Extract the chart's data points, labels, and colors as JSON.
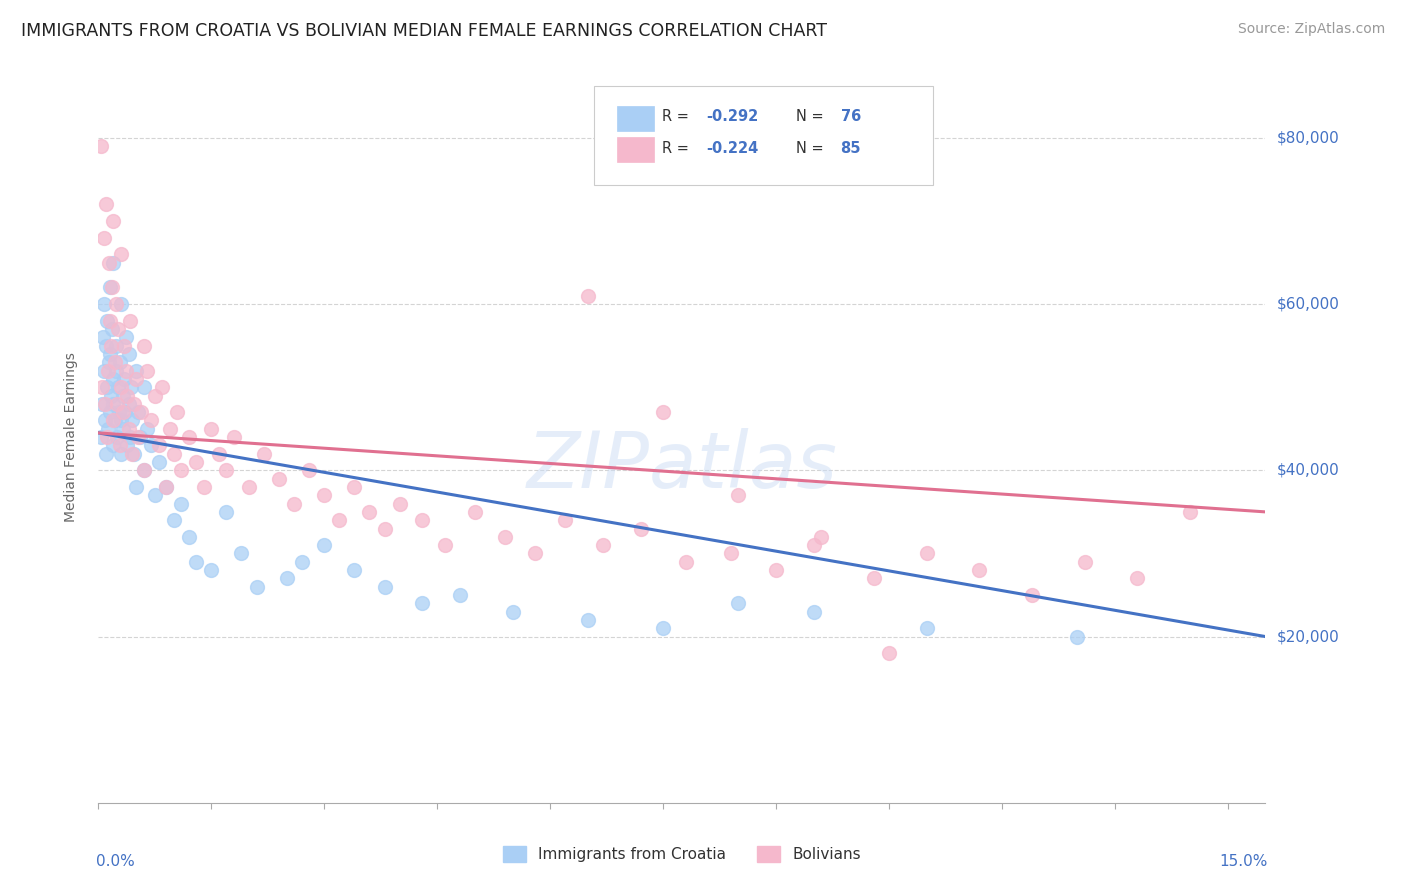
{
  "title": "IMMIGRANTS FROM CROATIA VS BOLIVIAN MEDIAN FEMALE EARNINGS CORRELATION CHART",
  "source": "Source: ZipAtlas.com",
  "ylabel": "Median Female Earnings",
  "yticks": [
    20000,
    40000,
    60000,
    80000
  ],
  "ytick_labels": [
    "$20,000",
    "$40,000",
    "$60,000",
    "$80,000"
  ],
  "watermark": "ZIPatlas",
  "croatia_color": "#aacff5",
  "bolivia_color": "#f5b8cc",
  "croatia_line_color": "#4472c4",
  "bolivia_line_color": "#e07090",
  "background_color": "#ffffff",
  "title_color": "#222222",
  "source_color": "#999999",
  "axis_label_color": "#4472c4",
  "yaxis_label_color": "#666666",
  "grid_color": "#d0d0d0",
  "legend_r1": "-0.292",
  "legend_n1": "76",
  "legend_r2": "-0.224",
  "legend_n2": "85",
  "legend_label1": "Immigrants from Croatia",
  "legend_label2": "Bolivians",
  "xlim_max": 0.155,
  "ylim_min": 0,
  "ylim_max": 88000,
  "croatia_x": [
    0.0003,
    0.0005,
    0.0006,
    0.0007,
    0.0008,
    0.0009,
    0.001,
    0.001,
    0.0012,
    0.0012,
    0.0013,
    0.0014,
    0.0015,
    0.0015,
    0.0016,
    0.0017,
    0.0018,
    0.0019,
    0.002,
    0.002,
    0.002,
    0.0022,
    0.0023,
    0.0024,
    0.0025,
    0.0026,
    0.0027,
    0.0028,
    0.003,
    0.003,
    0.003,
    0.0032,
    0.0033,
    0.0034,
    0.0035,
    0.0036,
    0.0038,
    0.004,
    0.004,
    0.0042,
    0.0043,
    0.0045,
    0.0047,
    0.005,
    0.005,
    0.0052,
    0.0055,
    0.006,
    0.006,
    0.0065,
    0.007,
    0.0075,
    0.008,
    0.009,
    0.01,
    0.011,
    0.012,
    0.013,
    0.015,
    0.017,
    0.019,
    0.021,
    0.025,
    0.027,
    0.03,
    0.034,
    0.038,
    0.043,
    0.048,
    0.055,
    0.065,
    0.075,
    0.085,
    0.095,
    0.11,
    0.13
  ],
  "croatia_y": [
    44000,
    48000,
    56000,
    52000,
    60000,
    46000,
    55000,
    42000,
    50000,
    58000,
    45000,
    53000,
    47000,
    62000,
    54000,
    49000,
    57000,
    43000,
    51000,
    65000,
    48000,
    46000,
    55000,
    52000,
    44000,
    50000,
    47000,
    53000,
    46000,
    42000,
    60000,
    49000,
    45000,
    51000,
    47000,
    56000,
    43000,
    48000,
    54000,
    44000,
    50000,
    46000,
    42000,
    52000,
    38000,
    47000,
    44000,
    40000,
    50000,
    45000,
    43000,
    37000,
    41000,
    38000,
    34000,
    36000,
    32000,
    29000,
    28000,
    35000,
    30000,
    26000,
    27000,
    29000,
    31000,
    28000,
    26000,
    24000,
    25000,
    23000,
    22000,
    21000,
    24000,
    23000,
    21000,
    20000
  ],
  "bolivia_x": [
    0.0003,
    0.0005,
    0.0007,
    0.0009,
    0.001,
    0.0012,
    0.0013,
    0.0014,
    0.0016,
    0.0017,
    0.0018,
    0.002,
    0.002,
    0.0022,
    0.0023,
    0.0025,
    0.0026,
    0.0028,
    0.003,
    0.003,
    0.0032,
    0.0034,
    0.0036,
    0.0038,
    0.004,
    0.0042,
    0.0045,
    0.0047,
    0.005,
    0.0053,
    0.0056,
    0.006,
    0.006,
    0.0065,
    0.007,
    0.0075,
    0.008,
    0.0085,
    0.009,
    0.0095,
    0.01,
    0.0105,
    0.011,
    0.012,
    0.013,
    0.014,
    0.015,
    0.016,
    0.017,
    0.018,
    0.02,
    0.022,
    0.024,
    0.026,
    0.028,
    0.03,
    0.032,
    0.034,
    0.036,
    0.038,
    0.04,
    0.043,
    0.046,
    0.05,
    0.054,
    0.058,
    0.062,
    0.067,
    0.072,
    0.078,
    0.084,
    0.09,
    0.096,
    0.103,
    0.11,
    0.117,
    0.124,
    0.131,
    0.138,
    0.145,
    0.065,
    0.075,
    0.085,
    0.095,
    0.105
  ],
  "bolivia_y": [
    79000,
    50000,
    68000,
    48000,
    72000,
    44000,
    52000,
    65000,
    58000,
    55000,
    62000,
    46000,
    70000,
    53000,
    60000,
    48000,
    57000,
    43000,
    50000,
    66000,
    47000,
    55000,
    52000,
    49000,
    45000,
    58000,
    42000,
    48000,
    51000,
    44000,
    47000,
    55000,
    40000,
    52000,
    46000,
    49000,
    43000,
    50000,
    38000,
    45000,
    42000,
    47000,
    40000,
    44000,
    41000,
    38000,
    45000,
    42000,
    40000,
    44000,
    38000,
    42000,
    39000,
    36000,
    40000,
    37000,
    34000,
    38000,
    35000,
    33000,
    36000,
    34000,
    31000,
    35000,
    32000,
    30000,
    34000,
    31000,
    33000,
    29000,
    30000,
    28000,
    32000,
    27000,
    30000,
    28000,
    25000,
    29000,
    27000,
    35000,
    61000,
    47000,
    37000,
    31000,
    18000
  ]
}
